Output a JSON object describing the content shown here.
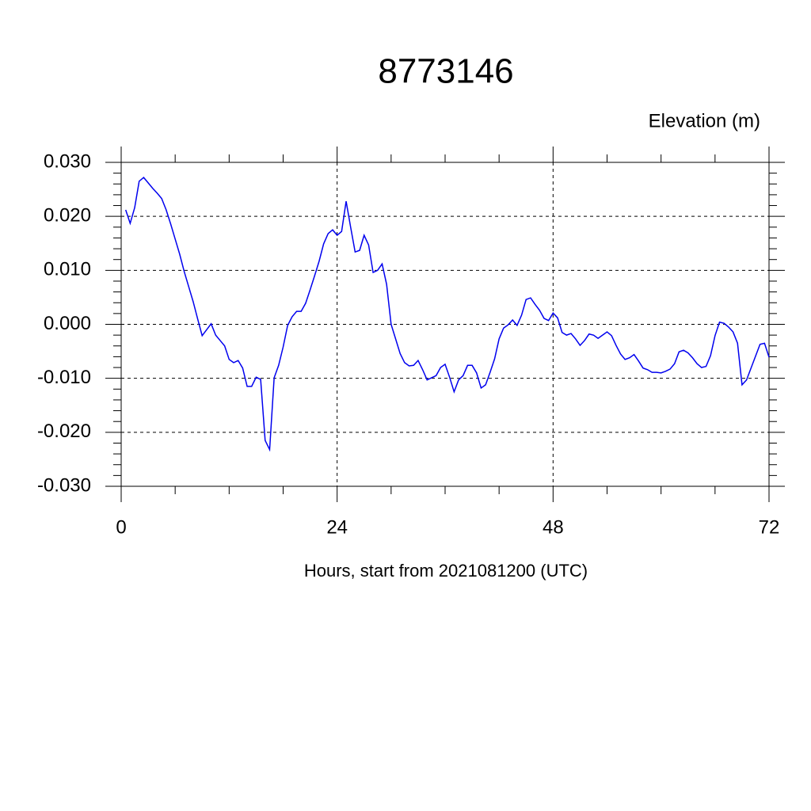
{
  "chart_data": {
    "type": "line",
    "title": "8773146",
    "subtitle": "Elevation (m)",
    "x_label": "Hours, start from 2021081200 (UTC)",
    "xlim": [
      0,
      72
    ],
    "xticks": [
      0,
      24,
      48,
      72
    ],
    "ylim": [
      -0.03,
      0.03
    ],
    "yticks": [
      {
        "value": -0.03,
        "label": "-0.030"
      },
      {
        "value": -0.02,
        "label": "-0.020"
      },
      {
        "value": -0.01,
        "label": "-0.010"
      },
      {
        "value": 0,
        "label": "0.000"
      },
      {
        "value": 0.01,
        "label": "0.010"
      },
      {
        "value": 0.02,
        "label": "0.020"
      },
      {
        "value": 0.03,
        "label": "0.030"
      }
    ],
    "grid": true,
    "x": [
      0.5,
      1,
      1.5,
      2,
      2.5,
      3,
      3.5,
      4,
      4.5,
      5,
      5.5,
      6,
      6.5,
      7,
      7.5,
      8,
      8.5,
      9,
      9.5,
      10,
      10.5,
      11,
      11.5,
      12,
      12.5,
      13,
      13.5,
      14,
      14.5,
      15,
      15.5,
      16,
      16.5,
      17,
      17.5,
      18,
      18.5,
      19,
      19.5,
      20,
      20.5,
      21,
      21.5,
      22,
      22.5,
      23,
      23.5,
      24,
      24.5,
      25,
      25.5,
      26,
      26.5,
      27,
      27.5,
      28,
      28.5,
      29,
      29.5,
      30,
      30.5,
      31,
      31.5,
      32,
      32.5,
      33,
      33.5,
      34,
      34.5,
      35,
      35.5,
      36,
      36.5,
      37,
      37.5,
      38,
      38.5,
      39,
      39.5,
      40,
      40.5,
      41,
      41.5,
      42,
      42.5,
      43,
      43.5,
      44,
      44.5,
      45,
      45.5,
      46,
      46.5,
      47,
      47.5,
      48,
      48.5,
      49,
      49.5,
      50,
      50.5,
      51,
      51.5,
      52,
      52.5,
      53,
      53.5,
      54,
      54.5,
      55,
      55.5,
      56,
      56.5,
      57,
      57.5,
      58,
      58.5,
      59,
      59.5,
      60,
      60.5,
      61,
      61.5,
      62,
      62.5,
      63,
      63.5,
      64,
      64.5,
      65,
      65.5,
      66,
      66.5,
      67,
      67.5,
      68,
      68.5,
      69,
      69.5,
      70,
      70.5,
      71,
      71.5,
      72
    ],
    "series": [
      {
        "color": "#0000ee",
        "values": [
          0.0212,
          0.0187,
          0.0216,
          0.0265,
          0.0272,
          0.0262,
          0.0252,
          0.0243,
          0.0233,
          0.0212,
          0.0186,
          0.0158,
          0.013,
          0.0098,
          0.007,
          0.0042,
          0.001,
          -0.0021,
          -0.001,
          0.0001,
          -0.002,
          -0.003,
          -0.004,
          -0.0065,
          -0.0071,
          -0.0067,
          -0.0081,
          -0.0115,
          -0.0115,
          -0.0098,
          -0.0102,
          -0.0215,
          -0.0232,
          -0.0099,
          -0.0076,
          -0.0042,
          -0.0002,
          0.0014,
          0.0024,
          0.0024,
          0.0039,
          0.0064,
          0.009,
          0.0117,
          0.0149,
          0.0168,
          0.0175,
          0.0165,
          0.0172,
          0.0228,
          0.018,
          0.0134,
          0.0137,
          0.0165,
          0.0147,
          0.0096,
          0.01,
          0.0112,
          0.0074,
          0,
          -0.0027,
          -0.0054,
          -0.0071,
          -0.0077,
          -0.0076,
          -0.0067,
          -0.0084,
          -0.0103,
          -0.0099,
          -0.0095,
          -0.008,
          -0.0074,
          -0.0098,
          -0.0125,
          -0.0103,
          -0.0095,
          -0.0076,
          -0.0076,
          -0.009,
          -0.0118,
          -0.0112,
          -0.0089,
          -0.0064,
          -0.0027,
          -0.0007,
          -0.0001,
          0.0008,
          -0.0002,
          0.0017,
          0.0046,
          0.0049,
          0.0037,
          0.0026,
          0.0011,
          0.0007,
          0.0021,
          0.0012,
          -0.0015,
          -0.002,
          -0.0017,
          -0.0027,
          -0.0039,
          -0.003,
          -0.0018,
          -0.002,
          -0.0026,
          -0.002,
          -0.0014,
          -0.0021,
          -0.0039,
          -0.0055,
          -0.0065,
          -0.0062,
          -0.0056,
          -0.0068,
          -0.0081,
          -0.0084,
          -0.0089,
          -0.0089,
          -0.009,
          -0.0087,
          -0.0083,
          -0.0073,
          -0.0051,
          -0.0048,
          -0.0053,
          -0.0062,
          -0.0073,
          -0.008,
          -0.0078,
          -0.0058,
          -0.0021,
          0.0004,
          0.0002,
          -0.0005,
          -0.0014,
          -0.0035,
          -0.0112,
          -0.0103,
          -0.0081,
          -0.0059,
          -0.0037,
          -0.0035,
          -0.0061
        ]
      }
    ]
  }
}
